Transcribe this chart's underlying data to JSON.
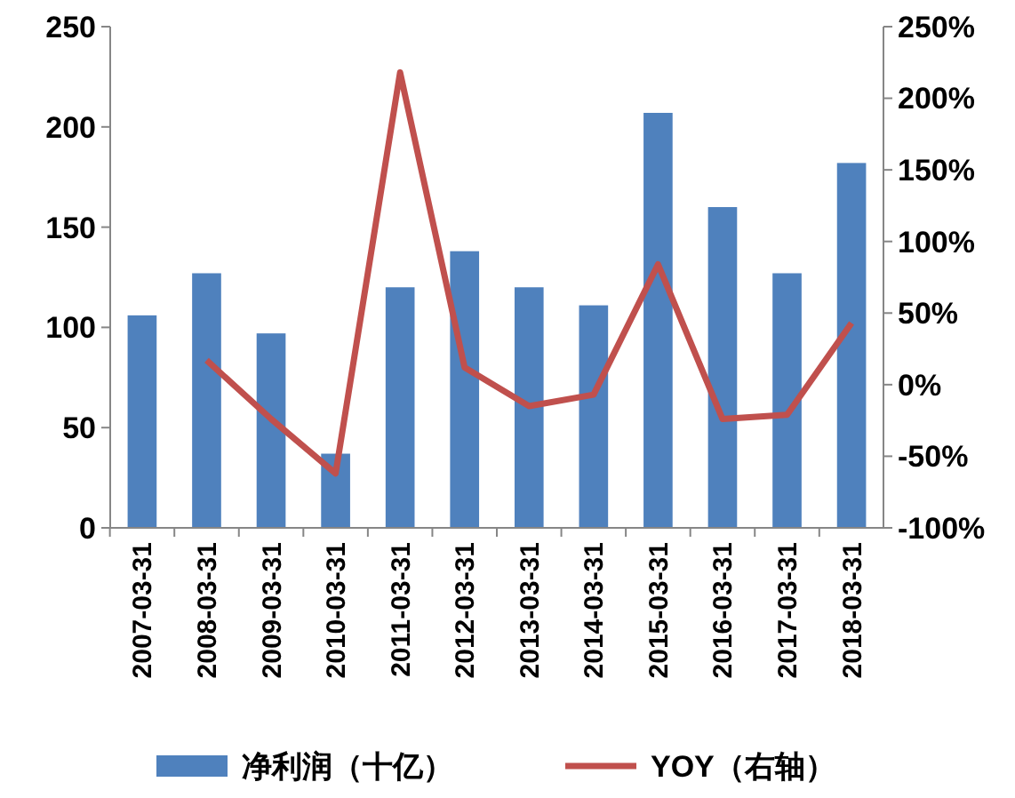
{
  "chart_data": {
    "type": "bar",
    "categories": [
      "2007-03-31",
      "2008-03-31",
      "2009-03-31",
      "2010-03-31",
      "2011-03-31",
      "2012-03-31",
      "2013-03-31",
      "2014-03-31",
      "2015-03-31",
      "2016-03-31",
      "2017-03-31",
      "2018-03-31"
    ],
    "series": [
      {
        "name": "净利润（十亿）",
        "color": "#4f81bd",
        "values": [
          106,
          127,
          97,
          37,
          120,
          138,
          120,
          111,
          207,
          160,
          127,
          182
        ]
      },
      {
        "name": "YOY（右轴）",
        "type": "line",
        "axis": "y2",
        "color": "#c0504d",
        "values": [
          null,
          17,
          -24,
          -62,
          218,
          12,
          -15,
          -7,
          84,
          -24,
          -21,
          43
        ]
      }
    ],
    "ylim": [
      0,
      250
    ],
    "yticks": [
      0,
      50,
      100,
      150,
      200,
      250
    ],
    "y2lim": [
      -100,
      250
    ],
    "y2ticks": [
      {
        "value": -100,
        "label": "-100%"
      },
      {
        "value": -50,
        "label": "-50%"
      },
      {
        "value": 0,
        "label": "0%"
      },
      {
        "value": 50,
        "label": "50%"
      },
      {
        "value": 100,
        "label": "100%"
      },
      {
        "value": 150,
        "label": "150%"
      },
      {
        "value": 200,
        "label": "200%"
      },
      {
        "value": 250,
        "label": "250%"
      }
    ],
    "grid": false,
    "legend": "bottom",
    "marker": "none",
    "line_style": "solid"
  }
}
